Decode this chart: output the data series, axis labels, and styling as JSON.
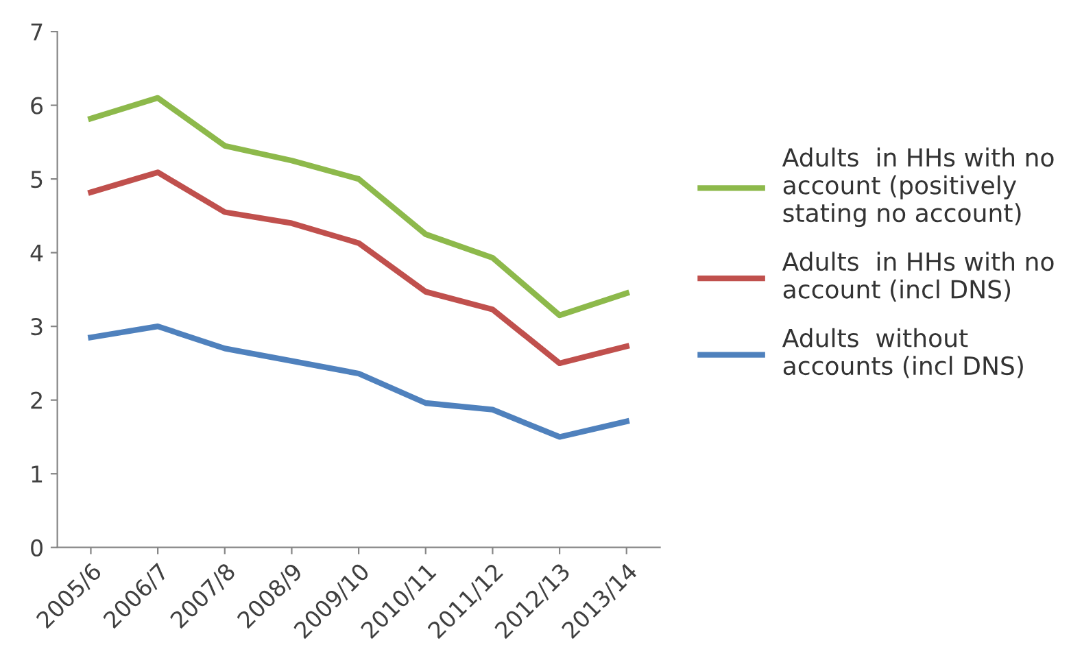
{
  "chart_data": {
    "type": "line",
    "categories": [
      "2005/6",
      "2006/7",
      "2007/8",
      "2008/9",
      "2009/10",
      "2010/11",
      "2011/12",
      "2012/13",
      "2013/14"
    ],
    "series": [
      {
        "name": "Adults  in HHs with no account (positively stating no account)",
        "color": "#8db94b",
        "values": [
          5.82,
          6.1,
          5.45,
          5.25,
          5.0,
          4.25,
          3.93,
          3.15,
          3.45
        ]
      },
      {
        "name": "Adults  in HHs with no account (incl DNS)",
        "color": "#c0504d",
        "values": [
          4.82,
          5.09,
          4.55,
          4.4,
          4.13,
          3.47,
          3.23,
          2.5,
          2.73
        ]
      },
      {
        "name": "Adults  without accounts (incl DNS)",
        "color": "#4f81bd",
        "values": [
          2.85,
          3.0,
          2.7,
          2.53,
          2.36,
          1.96,
          1.87,
          1.5,
          1.71
        ]
      }
    ],
    "ylim": [
      0,
      7
    ],
    "yticks": [
      0,
      1,
      2,
      3,
      4,
      5,
      6,
      7
    ],
    "grid": false,
    "legend": "right",
    "marker": "none",
    "line_style": "solid"
  }
}
